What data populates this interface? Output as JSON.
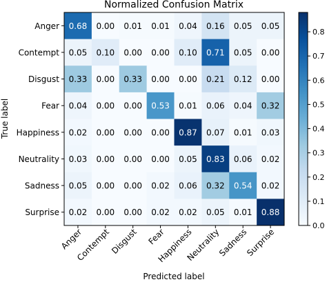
{
  "chart_data": {
    "type": "heatmap",
    "title": "Normalized Confusion Matrix",
    "xlabel": "Predicted label",
    "ylabel": "True label",
    "labels": [
      "Anger",
      "Contempt",
      "Disgust",
      "Fear",
      "Happiness",
      "Neutrality",
      "Sadness",
      "Surprise"
    ],
    "matrix": [
      [
        0.68,
        0.0,
        0.01,
        0.01,
        0.04,
        0.16,
        0.05,
        0.05
      ],
      [
        0.05,
        0.1,
        0.0,
        0.0,
        0.1,
        0.71,
        0.05,
        0.0
      ],
      [
        0.33,
        0.0,
        0.33,
        0.0,
        0.0,
        0.21,
        0.12,
        0.0
      ],
      [
        0.04,
        0.0,
        0.0,
        0.53,
        0.01,
        0.06,
        0.04,
        0.32
      ],
      [
        0.02,
        0.0,
        0.0,
        0.0,
        0.87,
        0.07,
        0.01,
        0.03
      ],
      [
        0.03,
        0.0,
        0.0,
        0.0,
        0.05,
        0.83,
        0.06,
        0.02
      ],
      [
        0.05,
        0.0,
        0.0,
        0.02,
        0.06,
        0.32,
        0.54,
        0.02
      ],
      [
        0.02,
        0.0,
        0.0,
        0.02,
        0.02,
        0.05,
        0.01,
        0.88
      ]
    ],
    "vmin": 0.0,
    "vmax": 0.88,
    "colormap": "Blues",
    "colorbar_ticks": [
      "0.0",
      "0.1",
      "0.2",
      "0.3",
      "0.4",
      "0.5",
      "0.6",
      "0.7",
      "0.8"
    ],
    "grid": false,
    "legend": "colorbar-right"
  }
}
